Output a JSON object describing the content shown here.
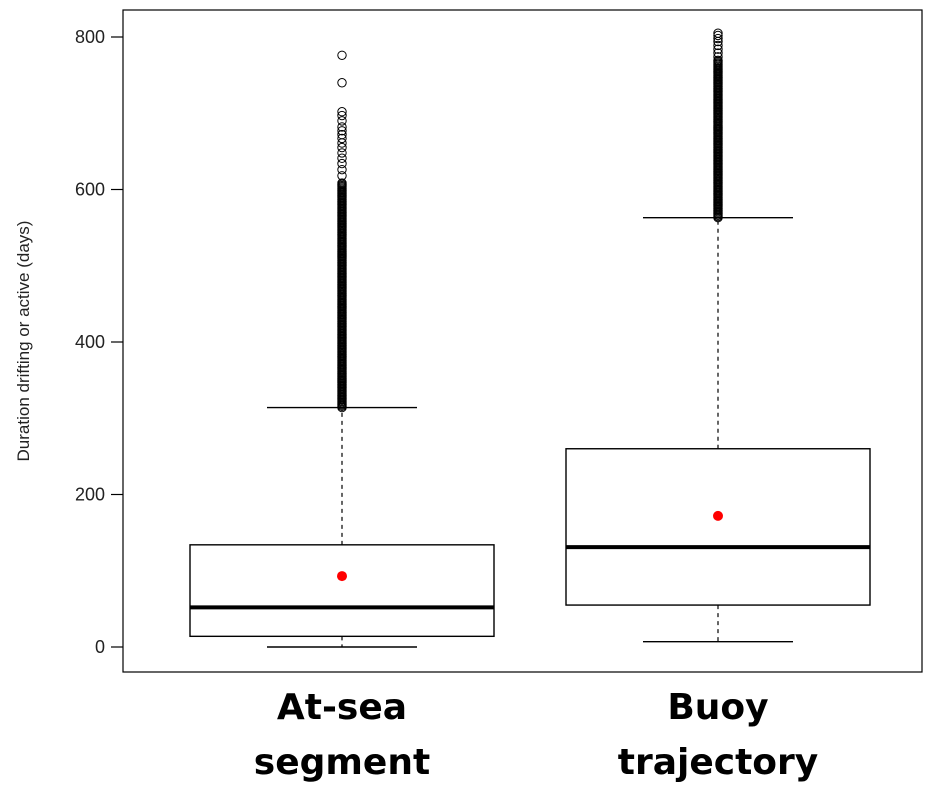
{
  "chart_data": {
    "type": "boxplot",
    "ylabel": "Duration drifting or active (days)",
    "ylim": [
      -30,
      830
    ],
    "yticks": [
      0,
      200,
      400,
      600,
      800
    ],
    "categories": [
      {
        "label_lines": [
          "At-sea",
          "segment"
        ]
      },
      {
        "label_lines": [
          "Buoy",
          "trajectory"
        ]
      }
    ],
    "boxes": [
      {
        "whisker_low": 0,
        "q1": 14,
        "median": 52,
        "q3": 134,
        "whisker_high": 314,
        "mean": 93,
        "outlier_dense_range": [
          314,
          610
        ],
        "outliers": [
          618,
          626,
          634,
          641,
          648,
          655,
          661,
          667,
          672,
          677,
          682,
          690,
          697,
          702,
          740,
          776
        ]
      },
      {
        "whisker_low": 7,
        "q1": 55,
        "median": 131,
        "q3": 260,
        "whisker_high": 563,
        "mean": 172,
        "outlier_dense_range": [
          563,
          770
        ],
        "outliers": [
          774,
          779,
          784,
          789,
          794,
          798,
          802,
          805
        ]
      }
    ],
    "colors": {
      "mean": "#ff0000",
      "box": "#000000"
    }
  }
}
